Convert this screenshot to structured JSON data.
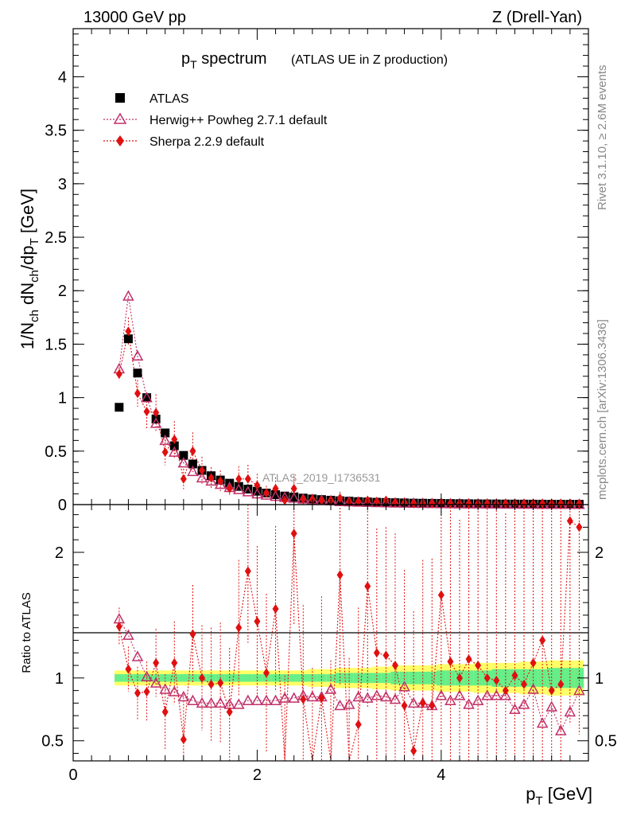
{
  "header": {
    "left": "13000 GeV pp",
    "right": "Z (Drell-Yan)"
  },
  "side": {
    "rivet": "Rivet 3.1.10, ≥ 2.6M events",
    "mcplots": "mcplots.cern.ch [arXiv:1306.3436]"
  },
  "chart_data": [
    {
      "type": "scatter",
      "title": "p_T spectrum",
      "title_main": "p",
      "title_sub": "T",
      "title_rest": " spectrum",
      "subtitle": "(ATLAS UE in Z production)",
      "xlabel": "p_T [GeV]",
      "ylabel": "1/N_ch dN_ch/dp_T [GeV]",
      "xlim": [
        0,
        5.6
      ],
      "ylim": [
        0,
        4.45
      ],
      "yticks": [
        0,
        0.5,
        1,
        1.5,
        2,
        2.5,
        3,
        3.5,
        4
      ],
      "ytick_labels": [
        "0",
        "0.5",
        "1",
        "1.5",
        "2",
        "2.5",
        "3",
        "3.5",
        "4"
      ],
      "watermark": "ATLAS_2019_I1736531",
      "legend_position": "top-left",
      "x": [
        0.5,
        0.6,
        0.7,
        0.8,
        0.9,
        1.0,
        1.1,
        1.2,
        1.3,
        1.4,
        1.5,
        1.6,
        1.7,
        1.8,
        1.9,
        2.0,
        2.1,
        2.2,
        2.3,
        2.4,
        2.5,
        2.6,
        2.7,
        2.8,
        2.9,
        3.0,
        3.1,
        3.2,
        3.3,
        3.4,
        3.5,
        3.6,
        3.7,
        3.8,
        3.9,
        4.0,
        4.1,
        4.2,
        4.3,
        4.4,
        4.5,
        4.6,
        4.7,
        4.8,
        4.9,
        5.0,
        5.1,
        5.2,
        5.3,
        5.4,
        5.5
      ],
      "series": [
        {
          "name": "ATLAS",
          "color": "#000000",
          "marker": "square",
          "values": [
            0.91,
            1.55,
            1.23,
            1.0,
            0.8,
            0.67,
            0.55,
            0.46,
            0.38,
            0.32,
            0.27,
            0.23,
            0.2,
            0.17,
            0.145,
            0.125,
            0.108,
            0.093,
            0.08,
            0.07,
            0.061,
            0.053,
            0.047,
            0.041,
            0.036,
            0.032,
            0.028,
            0.025,
            0.022,
            0.02,
            0.018,
            0.016,
            0.014,
            0.013,
            0.012,
            0.011,
            0.01,
            0.009,
            0.0082,
            0.0075,
            0.0068,
            0.0062,
            0.0057,
            0.0052,
            0.0048,
            0.0044,
            0.004,
            0.0037,
            0.0034,
            0.0031,
            0.0029
          ]
        },
        {
          "name": "Herwig++ Powheg 2.7.1 default",
          "color": "#c0306a",
          "marker": "triangle-open",
          "values": [
            1.27,
            1.95,
            1.39,
            1.0,
            0.76,
            0.6,
            0.49,
            0.39,
            0.31,
            0.25,
            0.22,
            0.19,
            0.16,
            0.14,
            0.12,
            0.1,
            0.089,
            0.077,
            0.067,
            0.06,
            0.052,
            0.045,
            0.04,
            0.036,
            0.029,
            0.026,
            0.023,
            0.021,
            0.019,
            0.017,
            0.015,
            0.014,
            0.012,
            0.011,
            0.01,
            0.009,
            0.008,
            0.0075,
            0.0068,
            0.0062,
            0.0058,
            0.0053,
            0.0049,
            0.0045,
            0.004,
            0.0035,
            0.0032,
            0.0029,
            0.0026,
            0.0024,
            0.0022
          ]
        },
        {
          "name": "Sherpa 2.2.9 default",
          "color": "#e01010",
          "marker": "diamond",
          "values": [
            1.22,
            1.62,
            1.04,
            0.87,
            0.86,
            0.49,
            0.61,
            0.24,
            0.5,
            0.32,
            0.25,
            0.22,
            0.15,
            0.24,
            0.24,
            0.18,
            0.11,
            0.15,
            0.04,
            0.15,
            0.05,
            0.05,
            0.04,
            0.04,
            0.06,
            0.03,
            0.03,
            0.04,
            0.03,
            0.04,
            0.02,
            0.02,
            0.01,
            0.01,
            0.01,
            0.02,
            0.01,
            0.01,
            0.01,
            0.01,
            0.01,
            0.01,
            0.01,
            0.01,
            0.01,
            0.01,
            0.01,
            0.01,
            0.01,
            0.01,
            0.01
          ]
        }
      ]
    },
    {
      "type": "scatter",
      "ylabel": "Ratio to ATLAS",
      "xlabel": "p_T [GeV]",
      "xlim": [
        0,
        5.6
      ],
      "ylim": [
        0.34,
        2.38
      ],
      "xticks": [
        0,
        2,
        4
      ],
      "xtick_labels": [
        "0",
        "2",
        "4"
      ],
      "yticks": [
        0.5,
        1,
        2
      ],
      "ytick_labels": [
        "0.5",
        "1",
        "2"
      ],
      "x": [
        0.5,
        0.6,
        0.7,
        0.8,
        0.9,
        1.0,
        1.1,
        1.2,
        1.3,
        1.4,
        1.5,
        1.6,
        1.7,
        1.8,
        1.9,
        2.0,
        2.1,
        2.2,
        2.3,
        2.4,
        2.5,
        2.6,
        2.7,
        2.8,
        2.9,
        3.0,
        3.1,
        3.2,
        3.3,
        3.4,
        3.5,
        3.6,
        3.7,
        3.8,
        3.9,
        4.0,
        4.1,
        4.2,
        4.3,
        4.4,
        4.5,
        4.6,
        4.7,
        4.8,
        4.9,
        5.0,
        5.1,
        5.2,
        5.3,
        5.4,
        5.5
      ],
      "band_green_halfwidth": [
        0.03,
        0.03,
        0.03,
        0.03,
        0.03,
        0.03,
        0.03,
        0.03,
        0.03,
        0.03,
        0.03,
        0.03,
        0.03,
        0.03,
        0.03,
        0.03,
        0.03,
        0.03,
        0.03,
        0.03,
        0.03,
        0.03,
        0.03,
        0.03,
        0.04,
        0.04,
        0.04,
        0.04,
        0.04,
        0.04,
        0.05,
        0.05,
        0.05,
        0.05,
        0.05,
        0.06,
        0.06,
        0.06,
        0.06,
        0.06,
        0.06,
        0.07,
        0.07,
        0.07,
        0.07,
        0.07,
        0.07,
        0.08,
        0.08,
        0.08,
        0.08
      ],
      "band_yellow_halfwidth": [
        0.06,
        0.06,
        0.06,
        0.06,
        0.06,
        0.06,
        0.06,
        0.06,
        0.06,
        0.06,
        0.06,
        0.06,
        0.06,
        0.06,
        0.06,
        0.06,
        0.06,
        0.06,
        0.06,
        0.06,
        0.06,
        0.07,
        0.07,
        0.07,
        0.08,
        0.08,
        0.08,
        0.08,
        0.09,
        0.09,
        0.1,
        0.1,
        0.1,
        0.1,
        0.1,
        0.11,
        0.11,
        0.11,
        0.11,
        0.12,
        0.12,
        0.12,
        0.12,
        0.12,
        0.13,
        0.13,
        0.13,
        0.14,
        0.14,
        0.14,
        0.14
      ],
      "series": [
        {
          "name": "Herwig++ Powheg 2.7.1 default",
          "color": "#c0306a",
          "marker": "triangle-open",
          "values": [
            1.47,
            1.34,
            1.17,
            1.01,
            0.96,
            0.91,
            0.89,
            0.85,
            0.82,
            0.8,
            0.8,
            0.8,
            0.79,
            0.79,
            0.82,
            0.82,
            0.82,
            0.82,
            0.84,
            0.84,
            0.86,
            0.85,
            0.85,
            0.91,
            0.78,
            0.79,
            0.85,
            0.84,
            0.86,
            0.85,
            0.83,
            0.93,
            0.8,
            0.8,
            0.78,
            0.86,
            0.82,
            0.86,
            0.79,
            0.82,
            0.86,
            0.86,
            0.86,
            0.75,
            0.79,
            0.91,
            0.64,
            0.77,
            0.58,
            0.73,
            0.9
          ]
        },
        {
          "name": "Sherpa 2.2.9 default",
          "color": "#e01010",
          "marker": "diamond",
          "values": [
            1.41,
            1.07,
            0.88,
            0.89,
            1.12,
            0.73,
            1.12,
            0.51,
            1.35,
            1.0,
            0.95,
            0.96,
            0.73,
            1.4,
            1.85,
            1.45,
            1.04,
            1.55,
            0.33,
            2.15,
            0.83,
            0.3,
            0.84,
            0.3,
            1.82,
            0.26,
            0.63,
            1.73,
            1.2,
            1.18,
            1.1,
            0.78,
            0.42,
            0.8,
            0.78,
            1.66,
            1.13,
            1.0,
            1.15,
            1.1,
            1.0,
            0.98,
            0.9,
            1.02,
            0.95,
            1.12,
            1.3,
            0.9,
            0.95,
            2.25,
            2.2
          ]
        }
      ]
    }
  ]
}
